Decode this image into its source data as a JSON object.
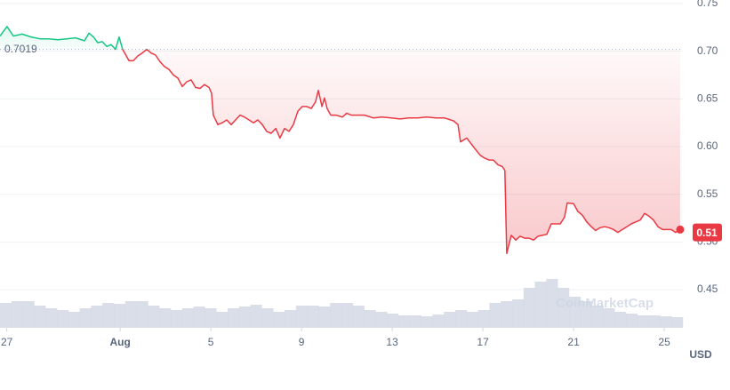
{
  "chart_data": {
    "type": "line",
    "x": [
      -0.3,
      0.01,
      0.29,
      0.68,
      1.07,
      1.46,
      1.86,
      2.25,
      2.64,
      3.03,
      3.43,
      3.62,
      3.82,
      4.01,
      4.21,
      4.41,
      4.6,
      4.8,
      4.95,
      5.11,
      5.39,
      5.58,
      5.78,
      5.97,
      6.17,
      6.37,
      6.56,
      6.76,
      6.95,
      7.15,
      7.35,
      7.54,
      7.74,
      7.94,
      8.13,
      8.33,
      8.52,
      8.72,
      8.92,
      9.03,
      9.11,
      9.31,
      9.5,
      9.7,
      9.9,
      10.09,
      10.29,
      10.48,
      10.68,
      10.88,
      11.07,
      11.27,
      11.46,
      11.66,
      11.86,
      12.05,
      12.25,
      12.45,
      12.64,
      12.84,
      13.03,
      13.23,
      13.43,
      13.62,
      13.74,
      13.9,
      14.01,
      14.13,
      14.29,
      14.52,
      14.8,
      14.99,
      15.19,
      15.39,
      15.78,
      16.17,
      16.56,
      16.95,
      17.35,
      17.74,
      18.13,
      18.52,
      18.92,
      19.31,
      19.7,
      19.9,
      20.01,
      20.29,
      20.48,
      20.68,
      20.88,
      21.07,
      21.27,
      21.46,
      21.66,
      21.86,
      21.97,
      22.05,
      22.25,
      22.45,
      22.64,
      22.84,
      23.03,
      23.23,
      23.43,
      23.62,
      23.82,
      24.01,
      24.41,
      24.6,
      24.72,
      25.0,
      25.19,
      25.39,
      25.58,
      25.78,
      25.97,
      26.17,
      26.37,
      26.56,
      26.76,
      26.95,
      27.15,
      27.35,
      27.54,
      27.74,
      27.94,
      28.13,
      28.33,
      28.52,
      28.72,
      28.92,
      29.11,
      29.31,
      29.5,
      29.7
    ],
    "values": [
      0.716,
      0.726,
      0.716,
      0.718,
      0.715,
      0.713,
      0.713,
      0.712,
      0.713,
      0.714,
      0.711,
      0.719,
      0.715,
      0.709,
      0.71,
      0.705,
      0.707,
      0.702,
      0.715,
      0.702,
      0.69,
      0.69,
      0.695,
      0.698,
      0.702,
      0.698,
      0.696,
      0.689,
      0.684,
      0.681,
      0.675,
      0.672,
      0.663,
      0.668,
      0.67,
      0.662,
      0.661,
      0.665,
      0.662,
      0.656,
      0.633,
      0.623,
      0.625,
      0.628,
      0.623,
      0.628,
      0.633,
      0.631,
      0.628,
      0.625,
      0.628,
      0.623,
      0.616,
      0.614,
      0.619,
      0.609,
      0.619,
      0.616,
      0.623,
      0.637,
      0.642,
      0.642,
      0.64,
      0.647,
      0.659,
      0.642,
      0.651,
      0.64,
      0.633,
      0.633,
      0.631,
      0.635,
      0.633,
      0.633,
      0.633,
      0.63,
      0.631,
      0.63,
      0.629,
      0.63,
      0.63,
      0.631,
      0.63,
      0.63,
      0.627,
      0.623,
      0.605,
      0.609,
      0.603,
      0.597,
      0.591,
      0.588,
      0.586,
      0.586,
      0.581,
      0.579,
      0.575,
      0.488,
      0.507,
      0.502,
      0.506,
      0.504,
      0.504,
      0.502,
      0.506,
      0.507,
      0.508,
      0.519,
      0.519,
      0.526,
      0.541,
      0.54,
      0.532,
      0.528,
      0.521,
      0.516,
      0.512,
      0.515,
      0.516,
      0.515,
      0.513,
      0.51,
      0.513,
      0.516,
      0.519,
      0.521,
      0.523,
      0.53,
      0.527,
      0.523,
      0.516,
      0.513,
      0.513,
      0.513,
      0.51,
      0.513
    ],
    "color_above": "#16c784",
    "color_below": "#ea3943",
    "reference": 0.7019,
    "current_price": 0.51,
    "xlim": [
      -0.3,
      29.82
    ],
    "xticks": [
      {
        "value": 0,
        "label": "27"
      },
      {
        "value": 5,
        "label": "Aug"
      },
      {
        "value": 9,
        "label": "5"
      },
      {
        "value": 13,
        "label": "9"
      },
      {
        "value": 17,
        "label": "13"
      },
      {
        "value": 21,
        "label": "17"
      },
      {
        "value": 25,
        "label": "21"
      },
      {
        "value": 29,
        "label": "25"
      }
    ],
    "ylim": [
      0.41,
      0.75
    ],
    "yticks": [
      0.45,
      {
        "value": 0.5,
        "label": "0.50"
      },
      0.55,
      {
        "value": 0.6,
        "label": "0.60"
      },
      0.65,
      {
        "value": 0.7,
        "label": "0.70"
      },
      0.75
    ],
    "grid": true,
    "currency": "USD",
    "watermark": "CoinMarketCap",
    "volume": {
      "color": "#cfd6e4",
      "ylim": [
        0,
        60
      ],
      "values": [
        28,
        30,
        30,
        25,
        22,
        20,
        18,
        22,
        25,
        28,
        27,
        30,
        30,
        25,
        22,
        20,
        22,
        24,
        22,
        18,
        22,
        24,
        26,
        22,
        18,
        20,
        25,
        25,
        24,
        28,
        28,
        25,
        20,
        18,
        16,
        14,
        14,
        13,
        15,
        18,
        20,
        18,
        20,
        28,
        30,
        32,
        45,
        52,
        55,
        45,
        35,
        30,
        25,
        22,
        18,
        16,
        14,
        14,
        13,
        12
      ]
    }
  }
}
